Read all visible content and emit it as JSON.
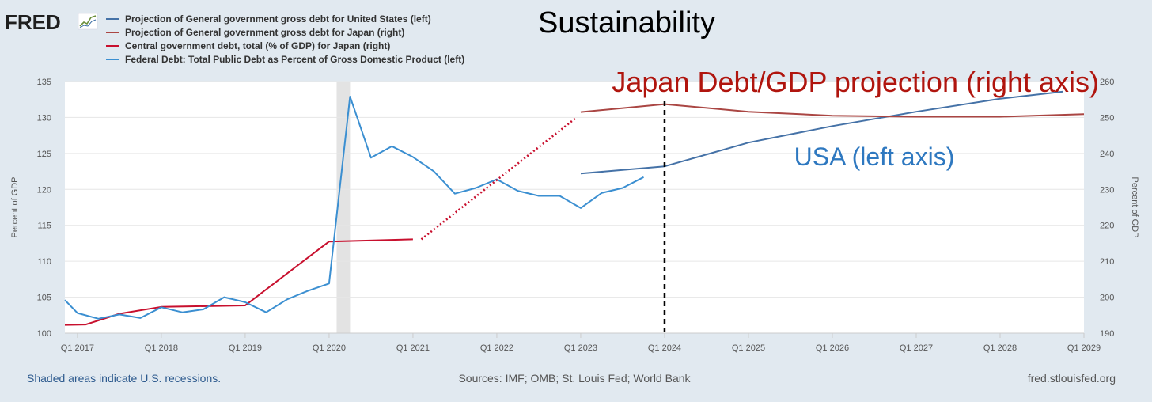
{
  "header": {
    "logo": "FRED",
    "title": "Sustainability"
  },
  "legend": [
    {
      "label": "Projection of General government gross debt for United States (left)",
      "color": "#4572a7"
    },
    {
      "label": "Projection of General government gross debt for Japan (right)",
      "color": "#aa4643"
    },
    {
      "label": "Central government debt, total (% of GDP) for Japan (right)",
      "color": "#c8102e"
    },
    {
      "label": "Federal Debt: Total Public Debt as Percent of Gross Domestic Product (left)",
      "color": "#3b8fd1"
    }
  ],
  "annotations": {
    "japan": "Japan Debt/GDP projection (right axis)",
    "usa": "USA (left axis)"
  },
  "footer": {
    "recession_note": "Shaded areas indicate U.S. recessions.",
    "sources": "Sources: IMF; OMB; St. Louis Fed; World Bank",
    "site": "fred.stlouisfed.org"
  },
  "chart_data": {
    "type": "line",
    "x_range": [
      2016.85,
      2029.0
    ],
    "x_ticks": [
      {
        "x": 2017,
        "label": "Q1 2017"
      },
      {
        "x": 2018,
        "label": "Q1 2018"
      },
      {
        "x": 2019,
        "label": "Q1 2019"
      },
      {
        "x": 2020,
        "label": "Q1 2020"
      },
      {
        "x": 2021,
        "label": "Q1 2021"
      },
      {
        "x": 2022,
        "label": "Q1 2022"
      },
      {
        "x": 2023,
        "label": "Q1 2023"
      },
      {
        "x": 2024,
        "label": "Q1 2024"
      },
      {
        "x": 2025,
        "label": "Q1 2025"
      },
      {
        "x": 2026,
        "label": "Q1 2026"
      },
      {
        "x": 2027,
        "label": "Q1 2027"
      },
      {
        "x": 2028,
        "label": "Q1 2028"
      },
      {
        "x": 2029,
        "label": "Q1 2029"
      }
    ],
    "left_axis": {
      "label": "Percent of GDP",
      "min": 100,
      "max": 135,
      "ticks": [
        100,
        105,
        110,
        115,
        120,
        125,
        130,
        135
      ]
    },
    "right_axis": {
      "label": "Percent of GDP",
      "min": 190,
      "max": 260,
      "ticks": [
        190,
        200,
        210,
        220,
        230,
        240,
        250,
        260
      ]
    },
    "recessions": [
      {
        "start": 2020.09,
        "end": 2020.25
      }
    ],
    "vertical_marker": {
      "x": 2024.0,
      "style": "dashed",
      "color": "#000000"
    },
    "series": [
      {
        "key": "us_projection",
        "axis": "left",
        "color": "#4572a7",
        "points": [
          [
            2023.0,
            122.2
          ],
          [
            2024.0,
            123.2
          ],
          [
            2025.0,
            126.5
          ],
          [
            2026.0,
            128.8
          ],
          [
            2027.0,
            130.8
          ],
          [
            2028.0,
            132.6
          ],
          [
            2028.75,
            133.6
          ]
        ]
      },
      {
        "key": "japan_projection",
        "axis": "right",
        "color": "#aa4643",
        "points": [
          [
            2023.0,
            251.5
          ],
          [
            2024.0,
            253.7
          ],
          [
            2025.0,
            251.6
          ],
          [
            2026.0,
            250.5
          ],
          [
            2027.0,
            250.2
          ],
          [
            2028.0,
            250.2
          ],
          [
            2029.0,
            250.9
          ]
        ]
      },
      {
        "key": "japan_central",
        "axis": "right",
        "color": "#c8102e",
        "points": [
          [
            2016.85,
            192.3
          ],
          [
            2017.1,
            192.4
          ],
          [
            2017.5,
            195.4
          ],
          [
            2018.0,
            197.3
          ],
          [
            2019.0,
            197.7
          ],
          [
            2020.0,
            215.5
          ],
          [
            2021.0,
            216.1
          ]
        ]
      },
      {
        "key": "federal_debt",
        "axis": "left",
        "color": "#3b8fd1",
        "points": [
          [
            2016.85,
            104.6
          ],
          [
            2017.0,
            102.8
          ],
          [
            2017.25,
            102.0
          ],
          [
            2017.5,
            102.6
          ],
          [
            2017.75,
            102.1
          ],
          [
            2018.0,
            103.6
          ],
          [
            2018.25,
            102.9
          ],
          [
            2018.5,
            103.3
          ],
          [
            2018.75,
            105.0
          ],
          [
            2019.0,
            104.3
          ],
          [
            2019.25,
            102.9
          ],
          [
            2019.5,
            104.7
          ],
          [
            2019.75,
            105.9
          ],
          [
            2020.0,
            106.9
          ],
          [
            2020.25,
            132.9
          ],
          [
            2020.5,
            124.4
          ],
          [
            2020.75,
            126.0
          ],
          [
            2021.0,
            124.5
          ],
          [
            2021.25,
            122.5
          ],
          [
            2021.5,
            119.4
          ],
          [
            2021.75,
            120.2
          ],
          [
            2022.0,
            121.4
          ],
          [
            2022.25,
            119.8
          ],
          [
            2022.5,
            119.1
          ],
          [
            2022.75,
            119.1
          ],
          [
            2023.0,
            117.4
          ],
          [
            2023.25,
            119.5
          ],
          [
            2023.5,
            120.2
          ],
          [
            2023.75,
            121.7
          ]
        ]
      }
    ],
    "overlay_lines": [
      {
        "key": "japan_gap_dotted",
        "axis": "right",
        "color": "#c8102e",
        "style": "dotted",
        "points": [
          [
            2021.1,
            216.1
          ],
          [
            2022.95,
            250.0
          ]
        ]
      }
    ]
  }
}
